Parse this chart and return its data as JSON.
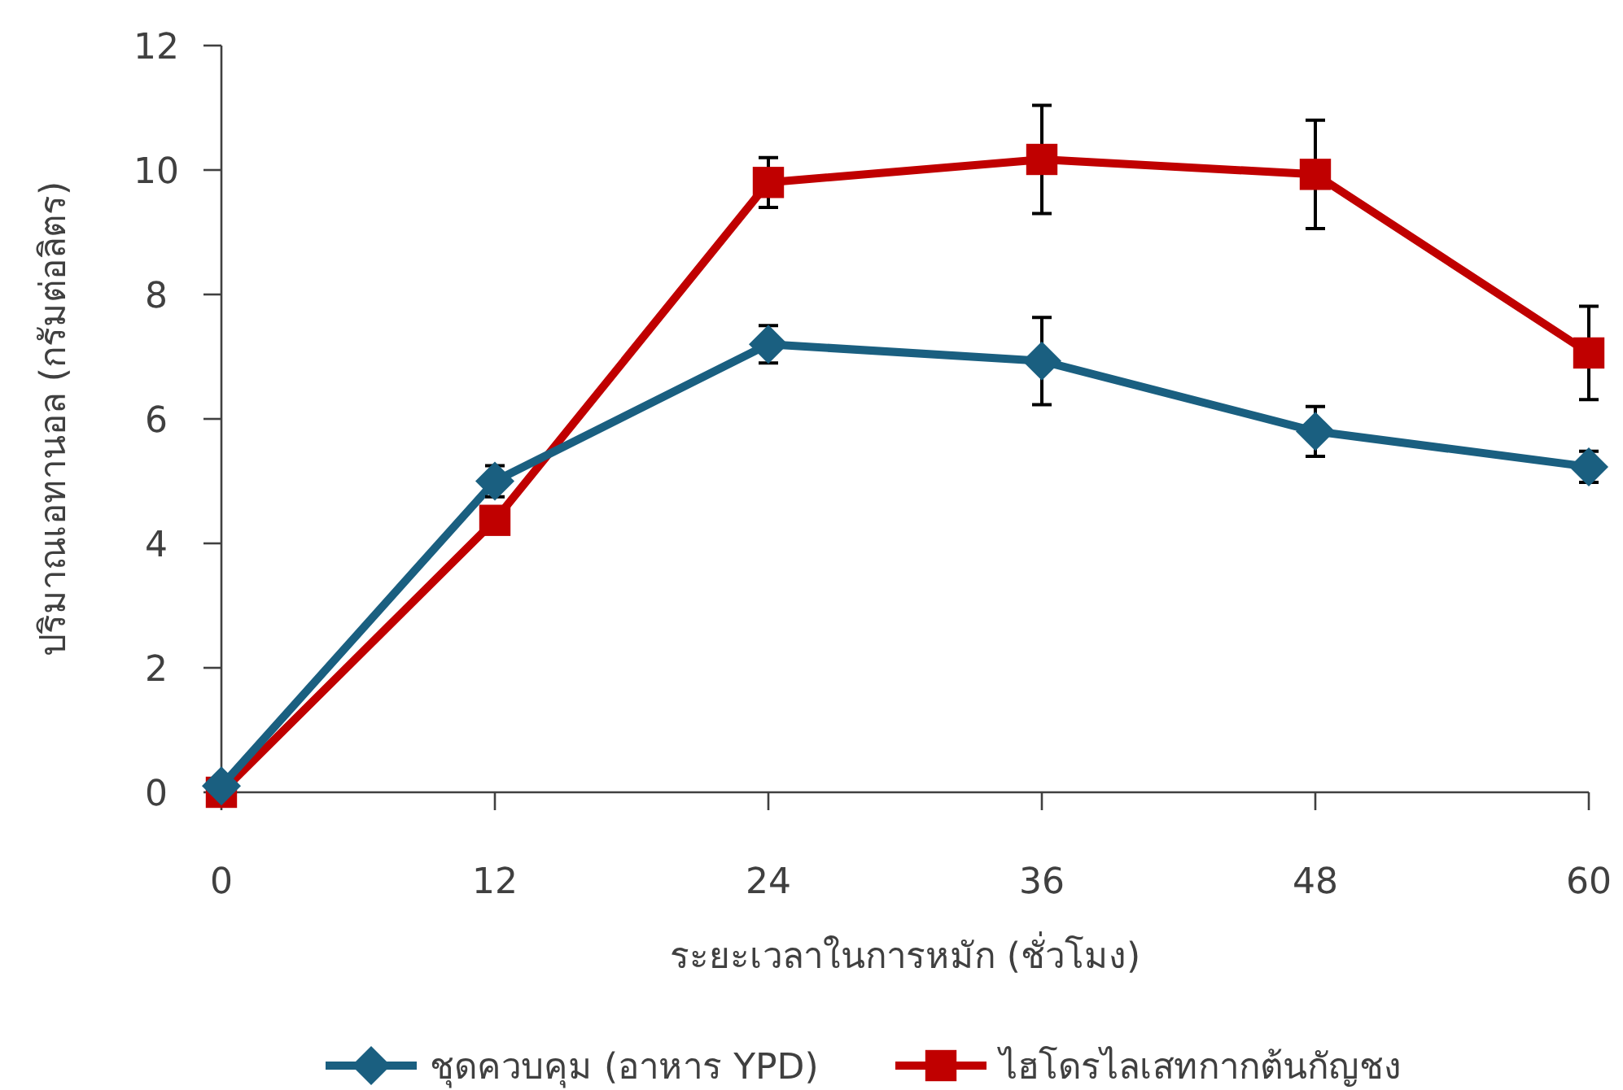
{
  "chart_data": {
    "type": "line",
    "xlabel": "ระยะเวลาในการหมัก (ชั่วโมง)",
    "ylabel": "ปริมาณเอทานอล (กรัมต่อลิตร)",
    "x": [
      0,
      12,
      24,
      36,
      48,
      60
    ],
    "series": [
      {
        "name": "ชุดควบคุม (อาหาร YPD)",
        "color": "#1a5f80",
        "marker": "diamond",
        "values": [
          0.1,
          5.0,
          7.2,
          6.93,
          5.8,
          5.23
        ],
        "errors": [
          null,
          0.25,
          0.3,
          0.7,
          0.4,
          0.25
        ]
      },
      {
        "name": "ไฮโดรไลเสทกากต้นกัญชง",
        "color": "#c00000",
        "marker": "square",
        "values": [
          0,
          4.37,
          9.8,
          10.17,
          9.93,
          7.06
        ],
        "errors": [
          null,
          null,
          0.4,
          0.87,
          0.87,
          0.75
        ]
      }
    ],
    "xlim": [
      0,
      60
    ],
    "xticks": [
      0,
      12,
      24,
      36,
      48,
      60
    ],
    "ylim": [
      0,
      12
    ],
    "yticks": [
      0,
      2,
      4,
      6,
      8,
      10,
      12
    ],
    "grid": false,
    "legend": "bottom"
  }
}
